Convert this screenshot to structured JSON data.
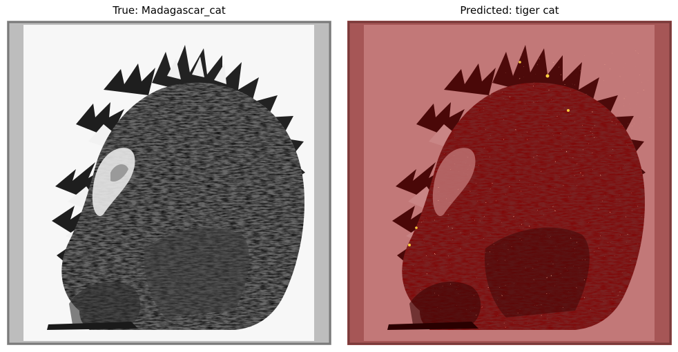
{
  "panels": [
    {
      "title": "True: Madagascar_cat",
      "image": "grayscale etching of a lemur curled up with ringed tail",
      "overlay": "none"
    },
    {
      "title": "Predicted: tiger cat",
      "image": "same lemur etching with red attribution heatmap overlay",
      "overlay": "red-heatmap"
    }
  ],
  "colors": {
    "border": "#8a8a8a",
    "side_bar_gray": "#bdbdbd",
    "overlay_red": "#c07474",
    "overlay_dark_red": "#5a0a0a",
    "hotspot": "#ff7755",
    "hotspot_yellow": "#ffd040"
  }
}
